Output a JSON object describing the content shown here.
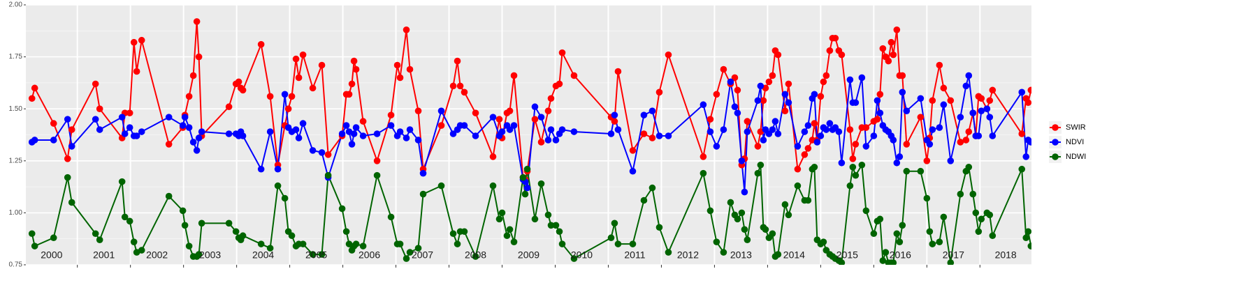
{
  "chart_data": {
    "type": "line",
    "x": [
      2000.145,
      2000.197,
      2000.553,
      2000.816,
      2000.895,
      2001.342,
      2001.421,
      2001.842,
      2001.895,
      2001.987,
      2002.066,
      2002.118,
      2002.211,
      2002.724,
      2002.987,
      2003.026,
      2003.105,
      2003.184,
      2003.25,
      2003.289,
      2003.342,
      2003.855,
      2003.987,
      2004.039,
      2004.079,
      2004.118,
      2004.461,
      2004.632,
      2004.776,
      2004.908,
      2004.974,
      2005.039,
      2005.118,
      2005.171,
      2005.25,
      2005.434,
      2005.605,
      2005.724,
      2005.987,
      2006.066,
      2006.118,
      2006.171,
      2006.211,
      2006.25,
      2006.382,
      2006.645,
      2006.908,
      2007.026,
      2007.079,
      2007.197,
      2007.263,
      2007.421,
      2007.513,
      2007.855,
      2008.079,
      2008.158,
      2008.211,
      2008.289,
      2008.5,
      2008.829,
      2008.947,
      2009.0,
      2009.092,
      2009.145,
      2009.224,
      2009.395,
      2009.434,
      2009.474,
      2009.618,
      2009.737,
      2009.868,
      2009.921,
      2010.013,
      2010.079,
      2010.132,
      2010.355,
      2011.053,
      2011.118,
      2011.184,
      2011.461,
      2011.671,
      2011.829,
      2011.961,
      2012.132,
      2012.789,
      2012.921,
      2013.039,
      2013.171,
      2013.303,
      2013.382,
      2013.434,
      2013.513,
      2013.566,
      2013.618,
      2013.816,
      2013.868,
      2013.921,
      2013.961,
      2014.026,
      2014.092,
      2014.145,
      2014.197,
      2014.329,
      2014.395,
      2014.566,
      2014.697,
      2014.763,
      2014.842,
      2014.882,
      2014.934,
      2015.0,
      2015.053,
      2015.105,
      2015.171,
      2015.224,
      2015.276,
      2015.342,
      2015.395,
      2015.553,
      2015.605,
      2015.658,
      2015.776,
      2015.855,
      2016.0,
      2016.066,
      2016.118,
      2016.171,
      2016.224,
      2016.276,
      2016.329,
      2016.368,
      2016.434,
      2016.487,
      2016.539,
      2016.618,
      2016.882,
      2017.0,
      2017.053,
      2017.105,
      2017.237,
      2017.316,
      2017.447,
      2017.632,
      2017.737,
      2017.789,
      2017.868,
      2017.921,
      2017.974,
      2018.026,
      2018.132,
      2018.184,
      2018.237,
      2018.789,
      2018.868,
      2018.908,
      2018.961
    ],
    "series": [
      {
        "name": "SWIR",
        "color": "#ff0000",
        "values": [
          1.55,
          1.6,
          1.43,
          1.26,
          1.4,
          1.62,
          1.5,
          1.36,
          1.48,
          1.48,
          1.82,
          1.68,
          1.83,
          1.33,
          1.41,
          1.47,
          1.56,
          1.66,
          1.92,
          1.75,
          1.37,
          1.51,
          1.62,
          1.63,
          1.6,
          1.59,
          1.81,
          1.56,
          1.23,
          1.42,
          1.5,
          1.56,
          1.74,
          1.65,
          1.76,
          1.6,
          1.71,
          1.28,
          1.37,
          1.57,
          1.57,
          1.62,
          1.73,
          1.69,
          1.44,
          1.25,
          1.47,
          1.71,
          1.65,
          1.88,
          1.69,
          1.49,
          1.21,
          1.42,
          1.61,
          1.73,
          1.61,
          1.58,
          1.48,
          1.27,
          1.45,
          1.36,
          1.48,
          1.49,
          1.66,
          1.17,
          1.16,
          1.2,
          1.45,
          1.34,
          1.49,
          1.55,
          1.61,
          1.62,
          1.77,
          1.66,
          1.46,
          1.44,
          1.68,
          1.3,
          1.38,
          1.36,
          1.58,
          1.76,
          1.27,
          1.45,
          1.57,
          1.69,
          1.62,
          1.65,
          1.59,
          1.23,
          1.26,
          1.44,
          1.32,
          1.39,
          1.54,
          1.6,
          1.63,
          1.66,
          1.78,
          1.76,
          1.49,
          1.62,
          1.21,
          1.28,
          1.31,
          1.35,
          1.43,
          1.35,
          1.56,
          1.63,
          1.66,
          1.78,
          1.84,
          1.84,
          1.78,
          1.76,
          1.4,
          1.26,
          1.33,
          1.41,
          1.41,
          1.44,
          1.45,
          1.57,
          1.79,
          1.75,
          1.73,
          1.82,
          1.76,
          1.88,
          1.66,
          1.66,
          1.33,
          1.46,
          1.25,
          1.36,
          1.54,
          1.71,
          1.6,
          1.54,
          1.34,
          1.35,
          1.39,
          1.48,
          1.37,
          1.56,
          1.55,
          1.5,
          1.54,
          1.59,
          1.38,
          1.55,
          1.53,
          1.59
        ]
      },
      {
        "name": "NDVI",
        "color": "#0000ff",
        "values": [
          1.34,
          1.35,
          1.35,
          1.45,
          1.32,
          1.45,
          1.4,
          1.46,
          1.38,
          1.41,
          1.37,
          1.37,
          1.39,
          1.46,
          1.42,
          1.46,
          1.41,
          1.34,
          1.3,
          1.36,
          1.39,
          1.38,
          1.38,
          1.37,
          1.39,
          1.37,
          1.21,
          1.39,
          1.21,
          1.57,
          1.41,
          1.39,
          1.4,
          1.36,
          1.43,
          1.3,
          1.29,
          1.17,
          1.38,
          1.42,
          1.39,
          1.33,
          1.38,
          1.41,
          1.37,
          1.38,
          1.42,
          1.37,
          1.39,
          1.36,
          1.4,
          1.35,
          1.19,
          1.49,
          1.38,
          1.4,
          1.42,
          1.42,
          1.37,
          1.46,
          1.37,
          1.39,
          1.42,
          1.4,
          1.42,
          1.16,
          1.15,
          1.12,
          1.51,
          1.46,
          1.35,
          1.4,
          1.35,
          1.38,
          1.4,
          1.39,
          1.38,
          1.47,
          1.4,
          1.2,
          1.47,
          1.49,
          1.37,
          1.37,
          1.52,
          1.39,
          1.32,
          1.4,
          1.63,
          1.51,
          1.48,
          1.25,
          1.1,
          1.39,
          1.54,
          1.61,
          1.35,
          1.4,
          1.38,
          1.4,
          1.44,
          1.38,
          1.57,
          1.53,
          1.32,
          1.39,
          1.42,
          1.55,
          1.57,
          1.34,
          1.37,
          1.41,
          1.4,
          1.43,
          1.4,
          1.41,
          1.39,
          1.24,
          1.64,
          1.53,
          1.53,
          1.65,
          1.32,
          1.37,
          1.54,
          1.48,
          1.42,
          1.4,
          1.39,
          1.37,
          1.35,
          1.24,
          1.27,
          1.58,
          1.49,
          1.55,
          1.35,
          1.33,
          1.4,
          1.41,
          1.52,
          1.25,
          1.46,
          1.61,
          1.66,
          1.48,
          1.37,
          1.37,
          1.49,
          1.5,
          1.46,
          1.37,
          1.58,
          1.27,
          1.35,
          1.34
        ]
      },
      {
        "name": "NDWI",
        "color": "#006400",
        "values": [
          0.9,
          0.84,
          0.88,
          1.17,
          1.05,
          0.9,
          0.87,
          1.15,
          0.98,
          0.96,
          0.86,
          0.81,
          0.82,
          1.08,
          1.01,
          0.94,
          0.84,
          0.79,
          0.79,
          0.8,
          0.95,
          0.95,
          0.91,
          0.88,
          0.87,
          0.89,
          0.85,
          0.83,
          1.13,
          1.07,
          0.91,
          0.89,
          0.84,
          0.85,
          0.85,
          0.8,
          0.8,
          1.18,
          1.02,
          0.91,
          0.85,
          0.82,
          0.84,
          0.85,
          0.84,
          1.18,
          0.98,
          0.85,
          0.85,
          0.78,
          0.81,
          0.83,
          1.09,
          1.13,
          0.9,
          0.85,
          0.91,
          0.91,
          0.79,
          1.13,
          0.97,
          1.0,
          0.89,
          0.92,
          0.86,
          1.17,
          1.09,
          1.21,
          0.97,
          1.14,
          0.99,
          0.94,
          0.94,
          0.91,
          0.85,
          0.78,
          0.88,
          0.95,
          0.85,
          0.85,
          1.06,
          1.12,
          0.93,
          0.81,
          1.19,
          1.01,
          0.86,
          0.81,
          1.05,
          0.99,
          0.97,
          1.0,
          0.92,
          0.87,
          1.19,
          1.23,
          0.93,
          0.92,
          0.88,
          0.9,
          0.79,
          0.8,
          1.04,
          0.99,
          1.13,
          1.06,
          1.06,
          1.21,
          1.22,
          0.87,
          0.85,
          0.86,
          0.82,
          0.8,
          0.79,
          0.78,
          0.77,
          0.76,
          1.13,
          1.22,
          1.18,
          1.23,
          1.01,
          0.9,
          0.96,
          0.97,
          0.77,
          0.81,
          0.76,
          0.76,
          0.76,
          0.9,
          0.86,
          0.94,
          1.2,
          1.2,
          1.07,
          0.91,
          0.85,
          0.86,
          0.98,
          0.76,
          1.09,
          1.2,
          1.22,
          1.09,
          1.0,
          0.91,
          0.97,
          1.0,
          0.99,
          0.89,
          1.21,
          0.88,
          0.91,
          0.84
        ]
      }
    ],
    "xlim": [
      2000.03,
      2018.97
    ],
    "ylim": [
      0.75,
      2.0
    ],
    "yticks": [
      {
        "value": 0.75,
        "label": "0.75"
      },
      {
        "value": 1,
        "label": "1.00"
      },
      {
        "value": 1.25,
        "label": "1.25"
      },
      {
        "value": 1.5,
        "label": "1.50"
      },
      {
        "value": 1.75,
        "label": "1.75"
      },
      {
        "value": 2,
        "label": "2.00"
      }
    ],
    "minor_yticks": [
      0.875,
      1.125,
      1.375,
      1.625,
      1.875
    ],
    "year_lines": [
      2001,
      2002,
      2003,
      2004,
      2005,
      2006,
      2007,
      2008,
      2009,
      2010,
      2011,
      2012,
      2013,
      2014,
      2015,
      2016,
      2017,
      2018
    ],
    "year_labels": [
      "2000",
      "2001",
      "2002",
      "2003",
      "2004",
      "2005",
      "2006",
      "2007",
      "2008",
      "2009",
      "2010",
      "2011",
      "2012",
      "2013",
      "2014",
      "2015",
      "2016",
      "2017",
      "2018"
    ],
    "grid": true,
    "legend": "right"
  }
}
